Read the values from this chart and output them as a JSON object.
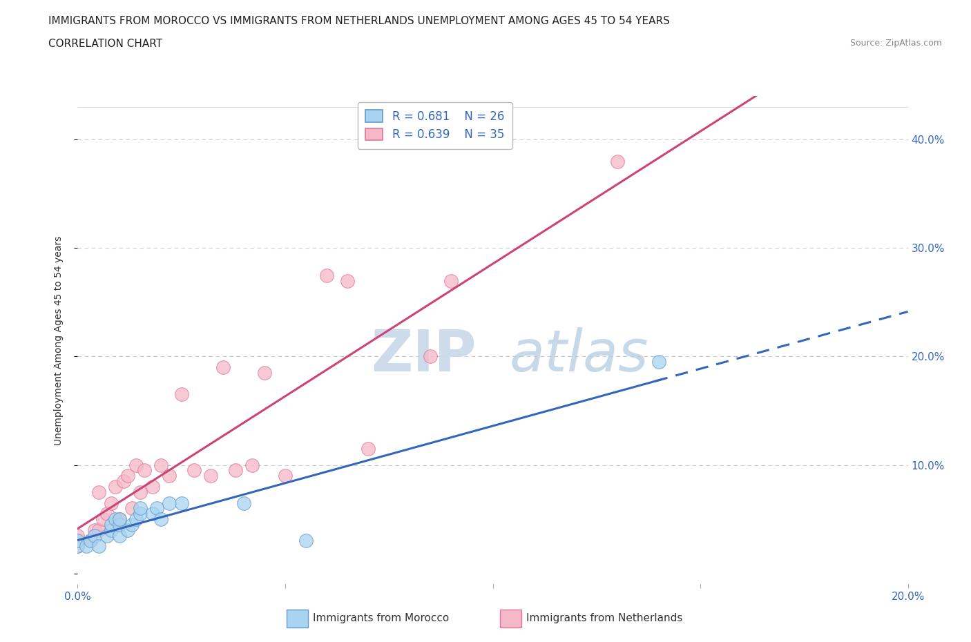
{
  "title_line1": "IMMIGRANTS FROM MOROCCO VS IMMIGRANTS FROM NETHERLANDS UNEMPLOYMENT AMONG AGES 45 TO 54 YEARS",
  "title_line2": "CORRELATION CHART",
  "source_text": "Source: ZipAtlas.com",
  "ylabel": "Unemployment Among Ages 45 to 54 years",
  "xlim": [
    0.0,
    0.2
  ],
  "ylim": [
    -0.01,
    0.44
  ],
  "xticks": [
    0.0,
    0.05,
    0.1,
    0.15,
    0.2
  ],
  "xticklabels": [
    "0.0%",
    "",
    "",
    "",
    "20.0%"
  ],
  "yticks": [
    0.0,
    0.1,
    0.2,
    0.3,
    0.4
  ],
  "yticklabels_right": [
    "",
    "10.0%",
    "20.0%",
    "30.0%",
    "40.0%"
  ],
  "morocco_color": "#A8D4F0",
  "morocco_edge_color": "#6699CC",
  "netherlands_color": "#F5B8C8",
  "netherlands_edge_color": "#DD7799",
  "trend_morocco_color": "#3366BB",
  "trend_netherlands_color": "#CC4477",
  "R_morocco": 0.681,
  "N_morocco": 26,
  "R_netherlands": 0.639,
  "N_netherlands": 35,
  "legend_label_morocco": "Immigrants from Morocco",
  "legend_label_netherlands": "Immigrants from Netherlands",
  "watermark_zip": "ZIP",
  "watermark_atlas": "atlas",
  "background_color": "#FFFFFF",
  "grid_color": "#CCCCCC",
  "tick_color": "#3366BB",
  "title_fontsize": 11,
  "axis_label_fontsize": 10,
  "tick_label_fontsize": 11,
  "legend_fontsize": 12,
  "morocco_x": [
    0.0,
    0.0,
    0.002,
    0.003,
    0.004,
    0.005,
    0.007,
    0.008,
    0.008,
    0.009,
    0.01,
    0.01,
    0.01,
    0.012,
    0.013,
    0.014,
    0.015,
    0.015,
    0.018,
    0.019,
    0.02,
    0.022,
    0.025,
    0.04,
    0.055,
    0.14
  ],
  "morocco_y": [
    0.025,
    0.03,
    0.025,
    0.03,
    0.035,
    0.025,
    0.035,
    0.04,
    0.045,
    0.05,
    0.035,
    0.045,
    0.05,
    0.04,
    0.045,
    0.05,
    0.055,
    0.06,
    0.055,
    0.06,
    0.05,
    0.065,
    0.065,
    0.065,
    0.03,
    0.195
  ],
  "netherlands_x": [
    0.0,
    0.0,
    0.0,
    0.003,
    0.004,
    0.005,
    0.005,
    0.006,
    0.007,
    0.008,
    0.009,
    0.01,
    0.011,
    0.012,
    0.013,
    0.014,
    0.015,
    0.016,
    0.018,
    0.02,
    0.022,
    0.025,
    0.028,
    0.032,
    0.035,
    0.038,
    0.042,
    0.045,
    0.05,
    0.06,
    0.065,
    0.07,
    0.085,
    0.09,
    0.13
  ],
  "netherlands_y": [
    0.025,
    0.03,
    0.035,
    0.03,
    0.04,
    0.04,
    0.075,
    0.05,
    0.055,
    0.065,
    0.08,
    0.05,
    0.085,
    0.09,
    0.06,
    0.1,
    0.075,
    0.095,
    0.08,
    0.1,
    0.09,
    0.165,
    0.095,
    0.09,
    0.19,
    0.095,
    0.1,
    0.185,
    0.09,
    0.275,
    0.27,
    0.115,
    0.2,
    0.27,
    0.38
  ]
}
